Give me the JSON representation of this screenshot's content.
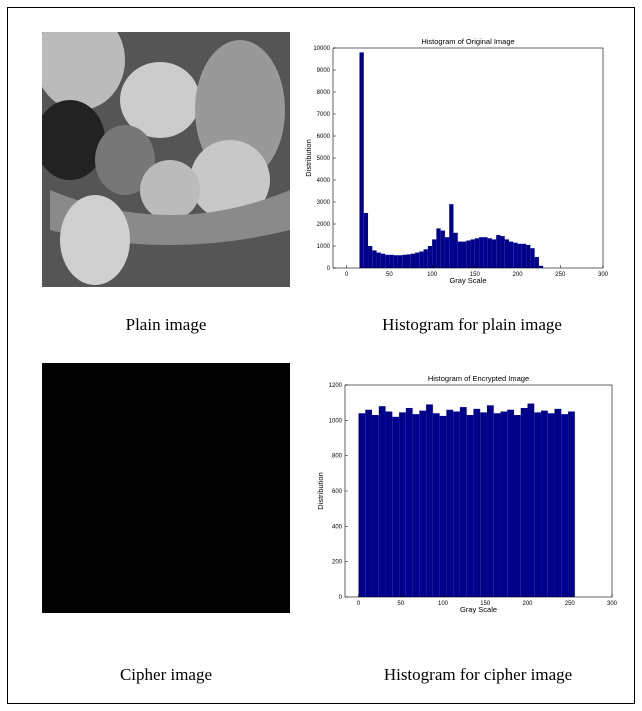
{
  "chart_data": [
    {
      "type": "histogram",
      "title": "Histogram of Original Image",
      "x_label": "Gray Scale",
      "y_label": "Distribution",
      "bins": [
        15,
        20,
        25,
        30,
        35,
        40,
        45,
        50,
        55,
        60,
        65,
        70,
        75,
        80,
        85,
        90,
        95,
        100,
        105,
        110,
        115,
        120,
        125,
        130,
        135,
        140,
        145,
        150,
        155,
        160,
        165,
        170,
        175,
        180,
        185,
        190,
        195,
        200,
        205,
        210,
        215,
        220,
        225,
        230
      ],
      "values": [
        9800,
        2500,
        1000,
        800,
        700,
        650,
        600,
        600,
        580,
        580,
        600,
        620,
        650,
        700,
        750,
        850,
        1000,
        1300,
        1800,
        1700,
        1400,
        2900,
        1600,
        1200,
        1200,
        1250,
        1300,
        1350,
        1400,
        1400,
        1350,
        1300,
        1500,
        1450,
        1300,
        1200,
        1150,
        1100,
        1100,
        1050,
        900,
        500,
        100
      ],
      "color": "#00008b",
      "xlim": [
        -16,
        300
      ],
      "ylim": [
        0,
        10000
      ],
      "xticks": [
        0,
        50,
        100,
        150,
        200,
        250,
        300
      ],
      "yticks": [
        0,
        1000,
        2000,
        3000,
        4000,
        5000,
        6000,
        7000,
        8000,
        9000,
        10000
      ]
    },
    {
      "type": "histogram",
      "title": "Histogram of Encrypted Image",
      "x_label": "Gray Scale",
      "y_label": "Distribution",
      "bins": [
        0,
        8,
        16,
        24,
        32,
        40,
        48,
        56,
        64,
        72,
        80,
        88,
        96,
        104,
        112,
        120,
        128,
        136,
        144,
        152,
        160,
        168,
        176,
        184,
        192,
        200,
        208,
        216,
        224,
        232,
        240,
        248,
        256
      ],
      "values": [
        1040,
        1060,
        1030,
        1080,
        1050,
        1020,
        1045,
        1070,
        1035,
        1055,
        1090,
        1040,
        1025,
        1060,
        1050,
        1075,
        1030,
        1065,
        1045,
        1085,
        1040,
        1050,
        1060,
        1030,
        1070,
        1095,
        1045,
        1055,
        1040,
        1065,
        1035,
        1050
      ],
      "color": "#00008b",
      "xlim": [
        -16,
        300
      ],
      "ylim": [
        0,
        1200
      ],
      "xticks": [
        0,
        50,
        100,
        150,
        200,
        250,
        300
      ],
      "yticks": [
        0,
        200,
        400,
        600,
        800,
        1000,
        1200
      ]
    }
  ],
  "captions": [
    "Plain image",
    "Histogram for plain image",
    "Cipher image",
    "Histogram for cipher image"
  ]
}
